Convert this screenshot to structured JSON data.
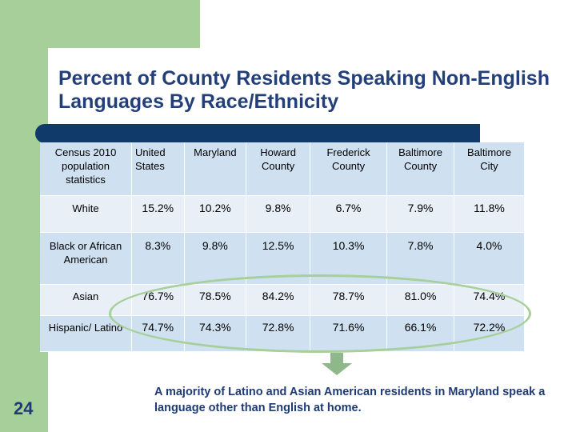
{
  "slide": {
    "title": "Percent of County Residents Speaking Non-English Languages By Race/Ethnicity",
    "page_number": "24",
    "note": "A majority of Latino and Asian American residents in Maryland speak a language other than English at home.",
    "colors": {
      "accent_green": "#a6cf9a",
      "title_blue": "#233f7a",
      "bar_navy": "#0f3a6a"
    }
  },
  "table": {
    "headers": [
      "Census 2010 population statistics",
      "United States",
      "Maryland",
      "Howard County",
      "Frederick County",
      "Baltimore County",
      "Baltimore City"
    ],
    "rows": [
      {
        "label": "White",
        "values": [
          "15.2%",
          "10.2%",
          "9.8%",
          "6.7%",
          "7.9%",
          "11.8%"
        ]
      },
      {
        "label": "Black or African American",
        "values": [
          "8.3%",
          "9.8%",
          "12.5%",
          "10.3%",
          "7.8%",
          "4.0%"
        ]
      },
      {
        "label": "Asian",
        "values": [
          "76.7%",
          "78.5%",
          "84.2%",
          "78.7%",
          "81.0%",
          "74.4%"
        ]
      },
      {
        "label": "Hispanic/ Latino",
        "values": [
          "74.7%",
          "74.3%",
          "72.8%",
          "71.6%",
          "66.1%",
          "72.2%"
        ]
      }
    ]
  }
}
